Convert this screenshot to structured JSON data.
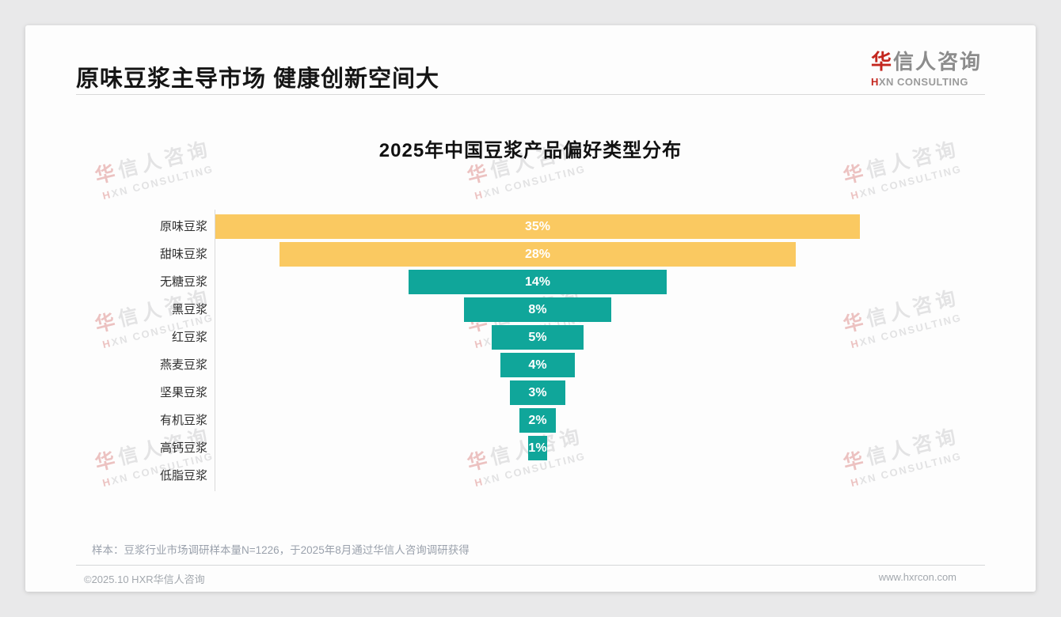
{
  "page": {
    "title": "原味豆浆主导市场 健康创新空间大",
    "sample_note": "样本：豆浆行业市场调研样本量N=1226，于2025年8月通过华信人咨询调研获得",
    "copyright": "©2025.10 HXR华信人咨询",
    "website": "www.hxrcon.com"
  },
  "brand": {
    "name_first": "华",
    "name_rest": "信人咨询",
    "name_en_first": "H",
    "name_en_rest": "XN CONSULTING"
  },
  "colors": {
    "yellow": "#FAC961",
    "teal": "#10A69A",
    "brand_red": "#C4271F"
  },
  "chart_data": {
    "type": "bar",
    "title": "2025年中国豆浆产品偏好类型分布",
    "orientation": "horizontal-centered-funnel",
    "unit": "%",
    "categories": [
      "原味豆浆",
      "甜味豆浆",
      "无糖豆浆",
      "黑豆浆",
      "红豆浆",
      "燕麦豆浆",
      "坚果豆浆",
      "有机豆浆",
      "高钙豆浆",
      "低脂豆浆"
    ],
    "values": [
      35,
      28,
      14,
      8,
      5,
      4,
      3,
      2,
      1,
      0
    ],
    "bar_colors": [
      "yellow",
      "yellow",
      "teal",
      "teal",
      "teal",
      "teal",
      "teal",
      "teal",
      "teal",
      "teal"
    ],
    "value_labels_inside_bars": true,
    "grid": false,
    "legend": false
  }
}
